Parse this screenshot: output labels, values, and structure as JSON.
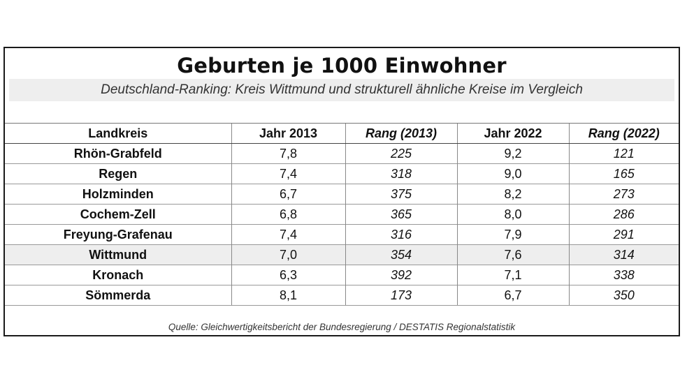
{
  "title": "Geburten je 1000 Einwohner",
  "subtitle": "Deutschland-Ranking: Kreis Wittmund und strukturell ähnliche Kreise im Vergleich",
  "table": {
    "headers": [
      "Landkreis",
      "Jahr 2013",
      "Rang (2013)",
      "Jahr 2022",
      "Rang (2022)"
    ],
    "rows": [
      {
        "kreis": "Rhön-Grabfeld",
        "jahr2013": "7,8",
        "rang2013": "225",
        "jahr2022": "9,2",
        "rang2022": "121"
      },
      {
        "kreis": "Regen",
        "jahr2013": "7,4",
        "rang2013": "318",
        "jahr2022": "9,0",
        "rang2022": "165"
      },
      {
        "kreis": "Holzminden",
        "jahr2013": "6,7",
        "rang2013": "375",
        "jahr2022": "8,2",
        "rang2022": "273"
      },
      {
        "kreis": "Cochem-Zell",
        "jahr2013": "6,8",
        "rang2013": "365",
        "jahr2022": "8,0",
        "rang2022": "286"
      },
      {
        "kreis": "Freyung-Grafenau",
        "jahr2013": "7,4",
        "rang2013": "316",
        "jahr2022": "7,9",
        "rang2022": "291"
      },
      {
        "kreis": "Wittmund",
        "jahr2013": "7,0",
        "rang2013": "354",
        "jahr2022": "7,6",
        "rang2022": "314"
      },
      {
        "kreis": "Kronach",
        "jahr2013": "6,3",
        "rang2013": "392",
        "jahr2022": "7,1",
        "rang2022": "338"
      },
      {
        "kreis": "Sömmerda",
        "jahr2013": "8,1",
        "rang2013": "173",
        "jahr2022": "6,7",
        "rang2022": "350"
      }
    ]
  },
  "source": "Quelle: Gleichwertigkeitsbericht der Bundesregierung / DESTATIS Regionalstatistik",
  "colors": {
    "highlight_row": "#eeeeee",
    "subtitle_band": "#eeeeee",
    "border": "#1a1a1a"
  }
}
